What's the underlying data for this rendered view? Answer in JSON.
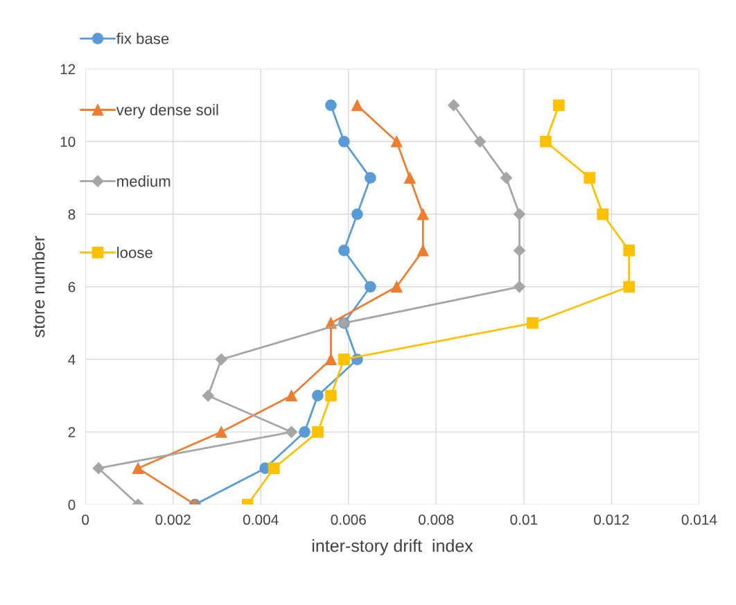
{
  "chart_data": {
    "type": "line",
    "xlabel": "inter-story drift  index",
    "ylabel": "store number",
    "xlim": [
      0,
      0.014
    ],
    "xticks": [
      0,
      0.002,
      0.004,
      0.006,
      0.008,
      0.01,
      0.012,
      0.014
    ],
    "ylim": [
      0,
      12
    ],
    "yticks": [
      0,
      2,
      4,
      6,
      8,
      10,
      12
    ],
    "grid": true,
    "legend": "top left",
    "line_style": "solid",
    "series": [
      {
        "name": "fix base",
        "color": "#5b9bd5",
        "marker": "circle",
        "x": [
          0.0025,
          0.0041,
          0.005,
          0.0053,
          0.0062,
          0.0059,
          0.0065,
          0.0059,
          0.0062,
          0.0065,
          0.0059,
          0.0056
        ],
        "values": [
          0,
          1,
          2,
          3,
          4,
          5,
          6,
          7,
          8,
          9,
          10,
          11
        ]
      },
      {
        "name": "very dense soil",
        "color": "#ed7d31",
        "marker": "triangle",
        "x": [
          0.0025,
          0.0012,
          0.0031,
          0.0047,
          0.0056,
          0.0056,
          0.0071,
          0.0077,
          0.0077,
          0.0074,
          0.0071,
          0.0062
        ],
        "values": [
          0,
          1,
          2,
          3,
          4,
          5,
          6,
          7,
          8,
          9,
          10,
          11
        ]
      },
      {
        "name": "medium",
        "color": "#a5a5a5",
        "marker": "diamond",
        "x": [
          0.0012,
          0.0003,
          0.0047,
          0.0028,
          0.0031,
          0.0059,
          0.0099,
          0.0099,
          0.0099,
          0.0096,
          0.009,
          0.0084
        ],
        "values": [
          0,
          1,
          2,
          3,
          4,
          5,
          6,
          7,
          8,
          9,
          10,
          11
        ]
      },
      {
        "name": "loose",
        "color": "#ffc000",
        "marker": "square",
        "x": [
          0.0037,
          0.0043,
          0.0053,
          0.0056,
          0.0059,
          0.0102,
          0.0124,
          0.0124,
          0.0118,
          0.0115,
          0.0105,
          0.0108
        ],
        "values": [
          0,
          1,
          2,
          3,
          4,
          5,
          6,
          7,
          8,
          9,
          10,
          11
        ]
      }
    ]
  }
}
